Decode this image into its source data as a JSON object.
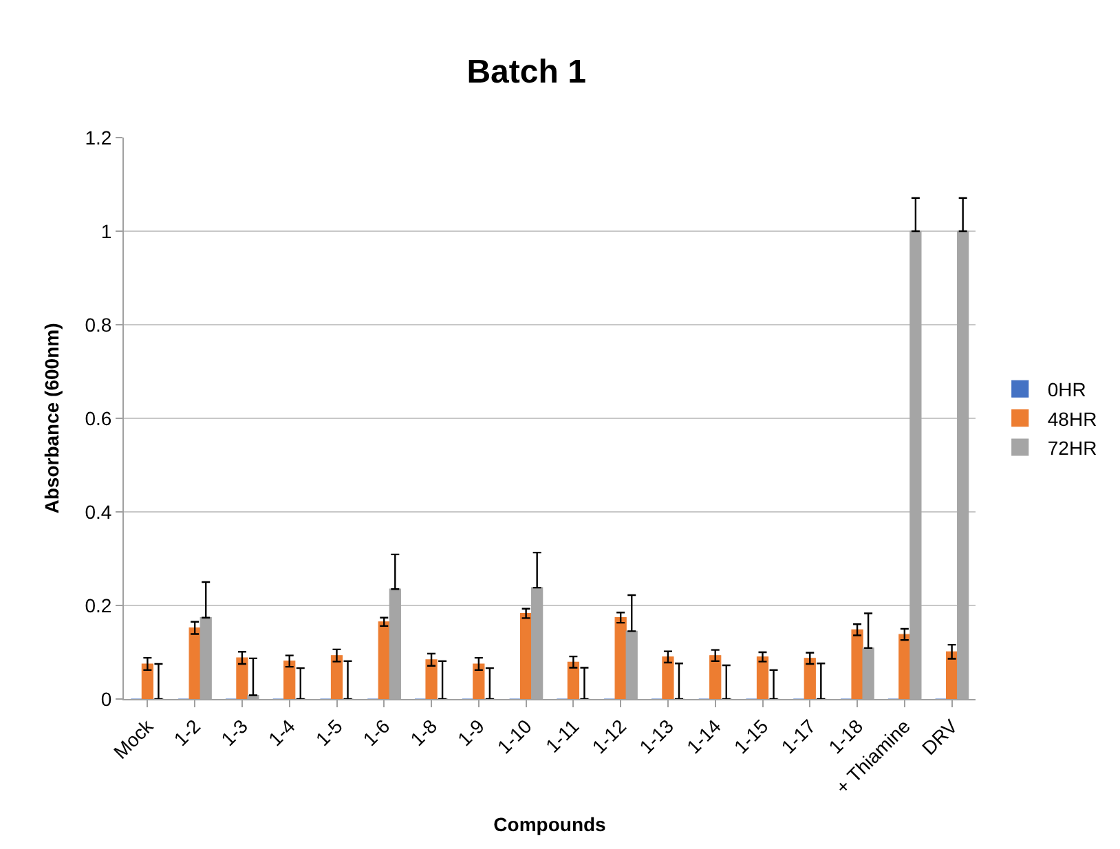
{
  "chart_data": {
    "type": "bar",
    "title": "Batch 1",
    "xlabel": "Compounds",
    "ylabel": "Absorbance (600nm)",
    "categories": [
      "Mock",
      "1-2",
      "1-3",
      "1-4",
      "1-5",
      "1-6",
      "1-8",
      "1-9",
      "1-10",
      "1-11",
      "1-12",
      "1-13",
      "1-14",
      "1-15",
      "1-17",
      "1-18",
      "+ Thiamine",
      "DRV"
    ],
    "series": [
      {
        "name": "0HR",
        "color": "#4472c4",
        "values": [
          0,
          0,
          0,
          0,
          0,
          0,
          0,
          0,
          0,
          0,
          0,
          0,
          0,
          0,
          0,
          0,
          0,
          0
        ]
      },
      {
        "name": "48HR",
        "color": "#ed7d31",
        "values": [
          0.075,
          0.152,
          0.088,
          0.081,
          0.093,
          0.165,
          0.084,
          0.075,
          0.183,
          0.079,
          0.174,
          0.09,
          0.093,
          0.09,
          0.087,
          0.148,
          0.138,
          0.101
        ],
        "errors": [
          0.013,
          0.013,
          0.013,
          0.012,
          0.013,
          0.009,
          0.013,
          0.013,
          0.01,
          0.012,
          0.011,
          0.012,
          0.012,
          0.01,
          0.012,
          0.012,
          0.012,
          0.015
        ]
      },
      {
        "name": "72HR",
        "color": "#a5a5a5",
        "values": [
          0,
          0.174,
          0.008,
          0,
          0,
          0.235,
          0,
          0,
          0.238,
          0,
          0.145,
          0,
          0,
          0,
          0,
          0.109,
          1.0,
          1.0
        ],
        "errors": [
          [
            0,
            0.075
          ],
          [
            0.174,
            0.25
          ],
          [
            0.008,
            0.087
          ],
          [
            0,
            0.066
          ],
          [
            0,
            0.081
          ],
          [
            0.235,
            0.309
          ],
          [
            0,
            0.081
          ],
          [
            0,
            0.066
          ],
          [
            0.238,
            0.313
          ],
          [
            0,
            0.067
          ],
          [
            0.145,
            0.222
          ],
          [
            0,
            0.076
          ],
          [
            0,
            0.072
          ],
          [
            0,
            0.062
          ],
          [
            0,
            0.076
          ],
          [
            0.109,
            0.183
          ],
          [
            1.0,
            1.071
          ],
          [
            1.0,
            1.071
          ]
        ]
      }
    ],
    "ylim": [
      0,
      1.2
    ],
    "yticks": [
      0,
      0.2,
      0.4,
      0.6,
      0.8,
      1,
      1.2
    ],
    "grid": "y",
    "legend": "right"
  }
}
